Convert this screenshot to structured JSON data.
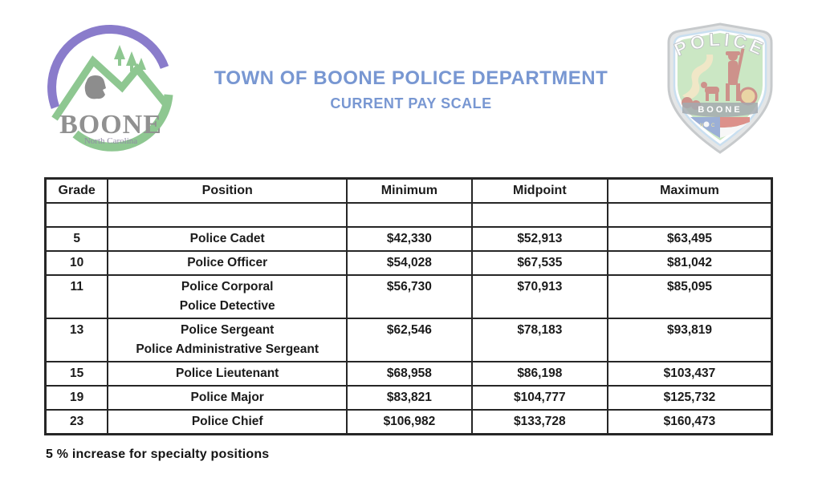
{
  "header": {
    "title": "TOWN OF BOONE POLICE DEPARTMENT",
    "subtitle": "CURRENT PAY SCALE",
    "accent_color": "#7897d2"
  },
  "town_logo": {
    "name": "BOONE",
    "region": "North Carolina",
    "colors": {
      "purple": "#8a7ccb",
      "green": "#8ec791",
      "gray": "#8f8f8f"
    }
  },
  "police_badge": {
    "top_label": "POLICE",
    "bottom_label": "BOONE",
    "colors": {
      "silver": "#cfd2d4",
      "blue_trim": "#9ec6e4",
      "field_green": "#a2d494",
      "figure_red": "#a63a2e",
      "path_tan": "#e4d49a",
      "flag_blue": "#4a6fb5",
      "flag_red": "#c0392b"
    }
  },
  "table": {
    "columns": [
      "Grade",
      "Position",
      "Minimum",
      "Midpoint",
      "Maximum"
    ],
    "rows": [
      {
        "grade": "",
        "positions": [
          ""
        ],
        "minimum": "",
        "midpoint": "",
        "maximum": ""
      },
      {
        "grade": "5",
        "positions": [
          "Police Cadet"
        ],
        "minimum": "$42,330",
        "midpoint": "$52,913",
        "maximum": "$63,495"
      },
      {
        "grade": "10",
        "positions": [
          "Police Officer"
        ],
        "minimum": "$54,028",
        "midpoint": "$67,535",
        "maximum": "$81,042"
      },
      {
        "grade": "11",
        "positions": [
          "Police Corporal",
          "Police Detective"
        ],
        "minimum": "$56,730",
        "midpoint": "$70,913",
        "maximum": "$85,095"
      },
      {
        "grade": "13",
        "positions": [
          "Police Sergeant",
          "Police Administrative Sergeant"
        ],
        "minimum": "$62,546",
        "midpoint": "$78,183",
        "maximum": "$93,819"
      },
      {
        "grade": "15",
        "positions": [
          "Police Lieutenant"
        ],
        "minimum": "$68,958",
        "midpoint": "$86,198",
        "maximum": "$103,437"
      },
      {
        "grade": "19",
        "positions": [
          "Police Major"
        ],
        "minimum": "$83,821",
        "midpoint": "$104,777",
        "maximum": "$125,732"
      },
      {
        "grade": "23",
        "positions": [
          "Police Chief"
        ],
        "minimum": "$106,982",
        "midpoint": "$133,728",
        "maximum": "$160,473"
      }
    ]
  },
  "footer": {
    "note": "5 % increase for specialty positions"
  }
}
